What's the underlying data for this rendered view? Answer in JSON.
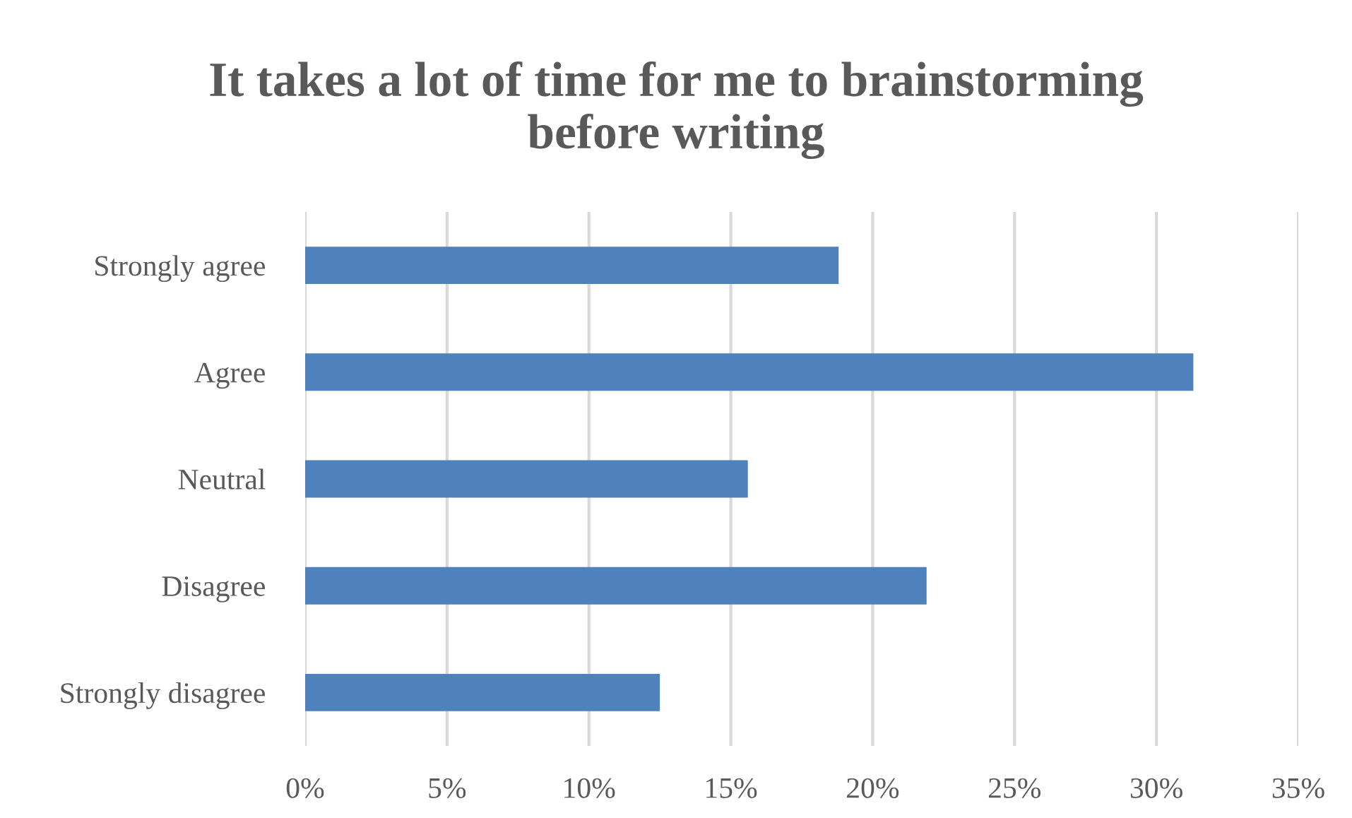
{
  "chart_data": {
    "type": "bar",
    "orientation": "horizontal",
    "title": "It takes a lot of time for me to brainstorming\nbefore writing",
    "categories": [
      "Strongly agree",
      "Agree",
      "Neutral",
      "Disagree",
      "Strongly disagree"
    ],
    "values": [
      18.8,
      31.3,
      15.6,
      21.9,
      12.5
    ],
    "color": "#4f81bd",
    "xlim": [
      0,
      35
    ],
    "xticks": [
      {
        "value": 0,
        "label": "0%"
      },
      {
        "value": 5,
        "label": "5%"
      },
      {
        "value": 10,
        "label": "10%"
      },
      {
        "value": 15,
        "label": "15%"
      },
      {
        "value": 20,
        "label": "20%"
      },
      {
        "value": 25,
        "label": "25%"
      },
      {
        "value": 30,
        "label": "30%"
      },
      {
        "value": 35,
        "label": "35%"
      }
    ],
    "grid": "x"
  }
}
